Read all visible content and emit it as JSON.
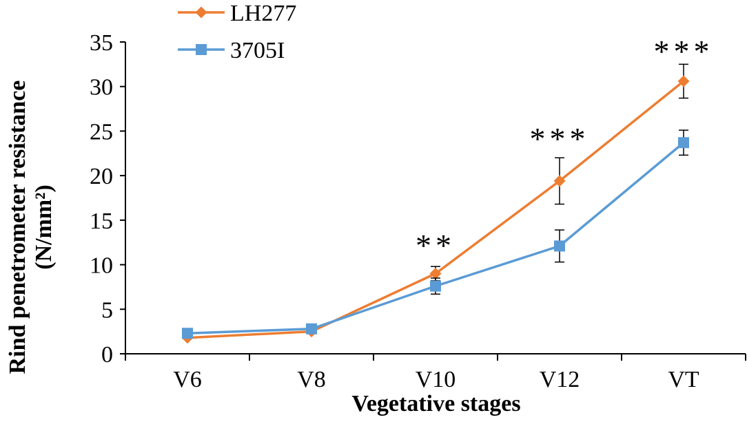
{
  "chart_data": {
    "type": "line",
    "title": "",
    "xlabel": "Vegetative stages",
    "ylabel": "Rind penetrometer resistance",
    "ylabel_units": "(N/mm²)",
    "categories": [
      "V6",
      "V8",
      "V10",
      "V12",
      "VT"
    ],
    "ylim": [
      0,
      35
    ],
    "yticks": [
      0,
      5,
      10,
      15,
      20,
      25,
      30,
      35
    ],
    "ytick_labels": [
      "0",
      "5",
      "10",
      "15",
      "20",
      "25",
      "30",
      "35"
    ],
    "grid": false,
    "legend_position": "top-left",
    "series": [
      {
        "name": "LH277",
        "color": "#ED7D31",
        "marker": "diamond",
        "values": [
          1.8,
          2.5,
          9.0,
          19.4,
          30.6
        ],
        "errors": [
          0.0,
          0.0,
          0.8,
          2.6,
          1.9
        ]
      },
      {
        "name": "3705I",
        "color": "#5B9BD5",
        "marker": "square",
        "values": [
          2.3,
          2.8,
          7.6,
          12.1,
          23.7
        ],
        "errors": [
          0.0,
          0.0,
          0.9,
          1.8,
          1.4
        ]
      }
    ],
    "annotations": [
      {
        "category": "V10",
        "text": "**",
        "y": 12.2
      },
      {
        "category": "V12",
        "text": "***",
        "y": 24.2
      },
      {
        "category": "VT",
        "text": "***",
        "y": 34.0
      }
    ]
  }
}
